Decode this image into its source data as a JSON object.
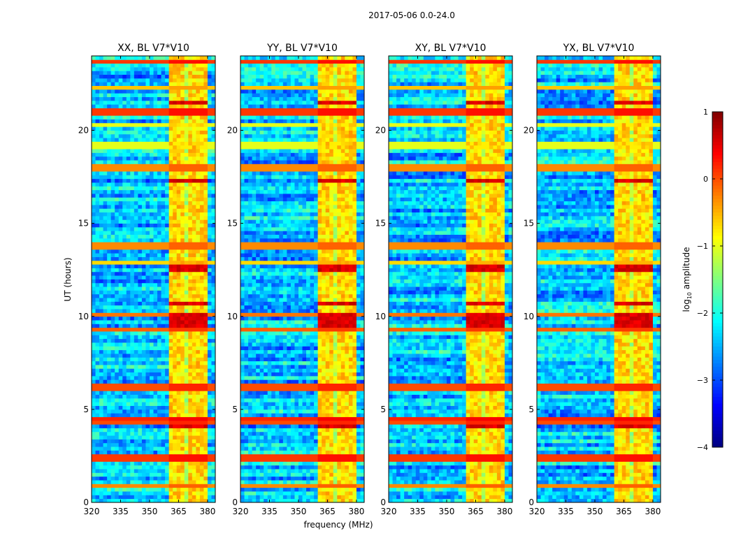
{
  "chart_data": {
    "type": "heatmap",
    "title": "2017-05-06 0.0-24.0",
    "xlabel": "frequency (MHz)",
    "ylabel": "UT (hours)",
    "xlim": [
      320,
      384
    ],
    "ylim": [
      0,
      24
    ],
    "xticks": [
      "320",
      "335",
      "350",
      "365",
      "380"
    ],
    "yticks": [
      "0",
      "5",
      "10",
      "15",
      "20"
    ],
    "colormap": "jet",
    "colorbar": {
      "label": "log10 amplitude",
      "label_main": "log",
      "label_sub": "10",
      "label_rest": " amplitude",
      "vmin": -4,
      "vmax": 1,
      "ticks": [
        "1",
        "0",
        "−1",
        "−2",
        "−3",
        "−4"
      ]
    },
    "panels": [
      {
        "title": "XX, BL V7*V10"
      },
      {
        "title": "YY, BL V7*V10"
      },
      {
        "title": "XY, BL V7*V10"
      },
      {
        "title": "YX, BL V7*V10"
      }
    ],
    "background_level": -2.4,
    "rfi_band_mhz": [
      360,
      380
    ],
    "rfi_band_level": -0.7,
    "rfi_gap_lines_mhz": [
      364,
      369,
      374,
      378
    ],
    "bright_rows": [
      {
        "ut": 23.7,
        "level": 0.1
      },
      {
        "ut": 22.3,
        "level": -0.6
      },
      {
        "ut": 21.1,
        "level": 0.1
      },
      {
        "ut": 20.9,
        "level": 0.1
      },
      {
        "ut": 20.3,
        "level": -1.0
      },
      {
        "ut": 19.2,
        "level": -1.0
      },
      {
        "ut": 18.0,
        "level": -0.3
      },
      {
        "ut": 13.8,
        "level": -0.3
      },
      {
        "ut": 12.9,
        "level": -0.7
      },
      {
        "ut": 10.1,
        "level": -0.2
      },
      {
        "ut": 9.3,
        "level": -0.1
      },
      {
        "ut": 6.2,
        "level": 0.0
      },
      {
        "ut": 4.5,
        "level": 0.2
      },
      {
        "ut": 4.3,
        "level": 0.0
      },
      {
        "ut": 2.4,
        "level": 0.1
      },
      {
        "ut": 0.9,
        "level": -0.3
      }
    ],
    "rfi_band_bright_rows_ut": [
      21.5,
      17.3,
      12.6,
      10.7,
      10.0,
      9.6,
      4.1
    ]
  }
}
